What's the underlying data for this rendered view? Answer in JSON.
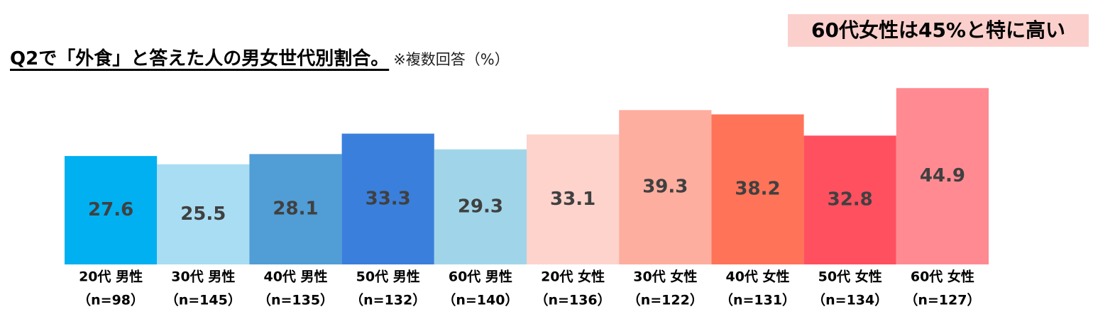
{
  "chart_data": {
    "type": "bar",
    "title": "Q2で「外食」と答えた人の男女世代別割合。",
    "subtitle": "※複数回答（%）",
    "annotation": "60代女性は45%と特に高い",
    "categories": [
      "20代 男性",
      "30代 男性",
      "40代 男性",
      "50代 男性",
      "60代 男性",
      "20代 女性",
      "30代 女性",
      "40代 女性",
      "50代 女性",
      "60代 女性"
    ],
    "sample_sizes": [
      "（n=98）",
      "（n=145）",
      "（n=135）",
      "（n=132）",
      "（n=140）",
      "（n=136）",
      "（n=122）",
      "（n=131）",
      "（n=134）",
      "（n=127）"
    ],
    "values": [
      27.6,
      25.5,
      28.1,
      33.3,
      29.3,
      33.1,
      39.3,
      38.2,
      32.8,
      44.9
    ],
    "colors": [
      "#00b0f0",
      "#a9ddf3",
      "#519dd6",
      "#3a7fdc",
      "#a0d5e9",
      "#fdd3cc",
      "#fdae9e",
      "#ff7358",
      "#ff5060",
      "#ff8a92"
    ]
  }
}
